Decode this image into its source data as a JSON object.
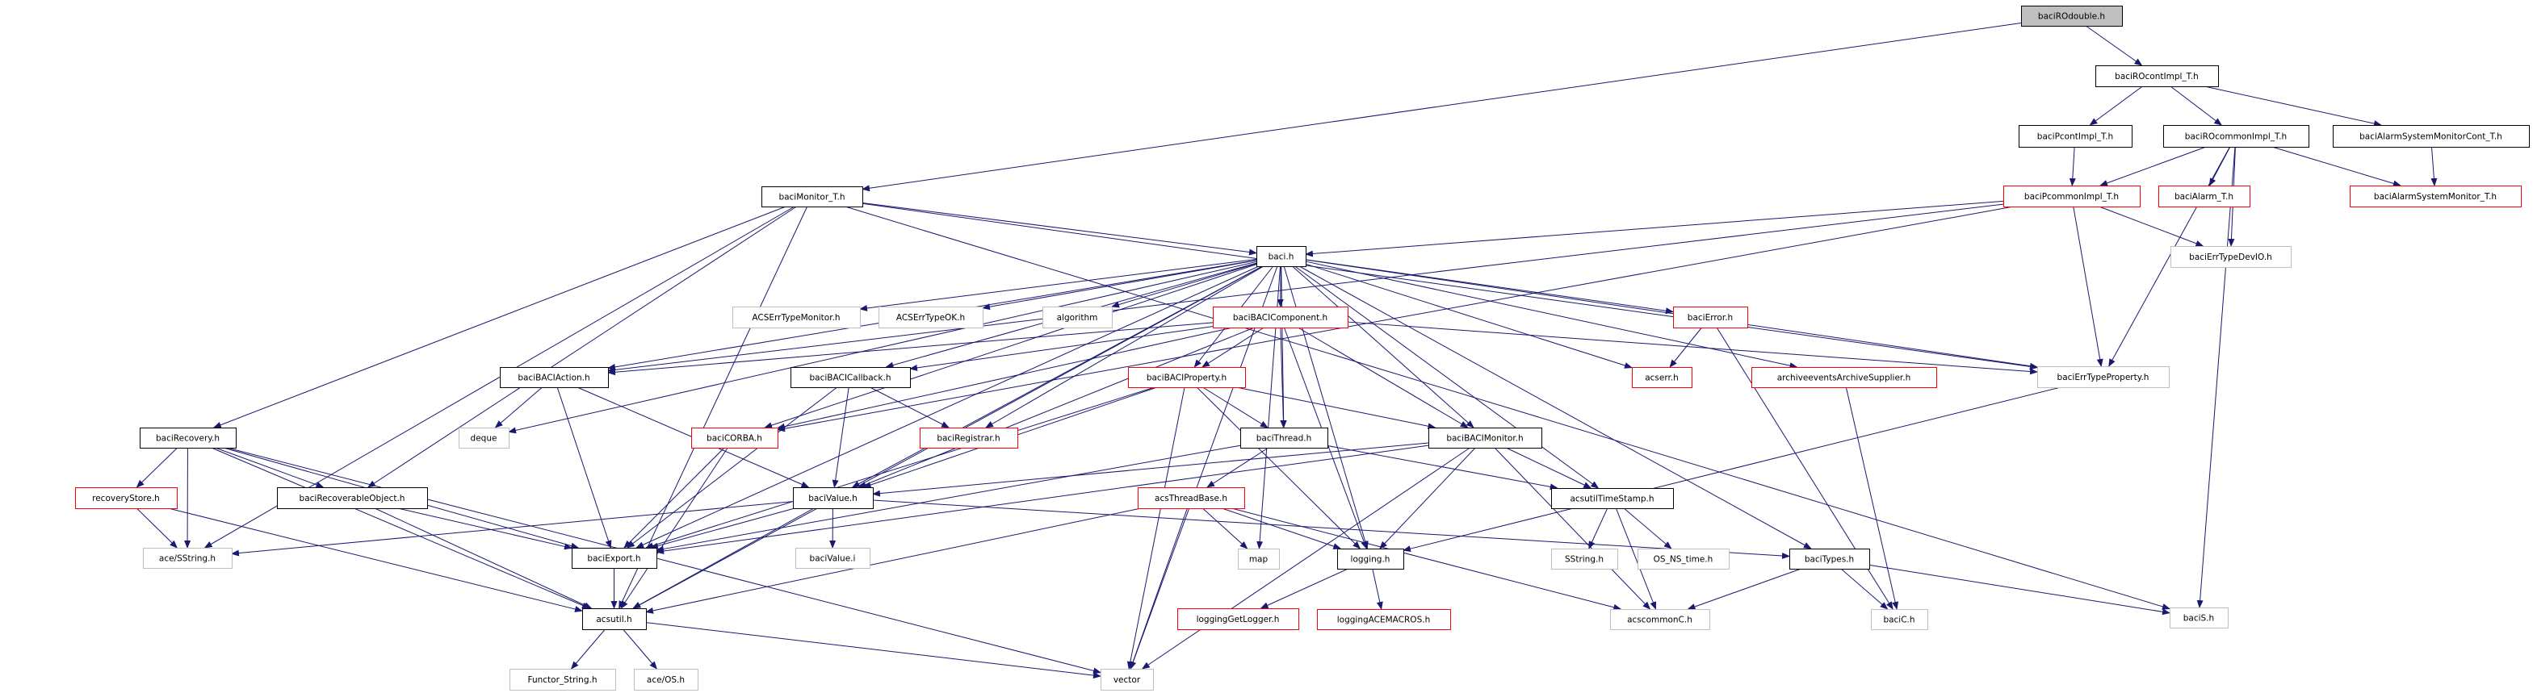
{
  "graph": {
    "colors": {
      "edge": "#191970",
      "root_fill": "#bfbfbf",
      "documented_border": "#000000",
      "undocumented_border": "#ff0000",
      "external_border": "#bfbfbf",
      "background": "#ffffff"
    },
    "nodes": [
      {
        "id": "baciROdouble",
        "label": "baciROdouble.h",
        "kind": "root"
      },
      {
        "id": "baciROcontImpl_T",
        "label": "baciROcontImpl_T.h",
        "kind": "documented"
      },
      {
        "id": "baciPcontImpl_T",
        "label": "baciPcontImpl_T.h",
        "kind": "documented"
      },
      {
        "id": "baciROcommonImpl_T",
        "label": "baciROcommonImpl_T.h",
        "kind": "documented"
      },
      {
        "id": "baciAlarmSystemMonitorCont_T",
        "label": "baciAlarmSystemMonitorCont_T.h",
        "kind": "documented"
      },
      {
        "id": "baciPcommonImpl_T",
        "label": "baciPcommonImpl_T.h",
        "kind": "undocumented"
      },
      {
        "id": "baciAlarm_T",
        "label": "baciAlarm_T.h",
        "kind": "undocumented"
      },
      {
        "id": "baciAlarmSystemMonitor_T",
        "label": "baciAlarmSystemMonitor_T.h",
        "kind": "undocumented"
      },
      {
        "id": "baciErrTypeDevIO",
        "label": "baciErrTypeDevIO.h",
        "kind": "external"
      },
      {
        "id": "baciErrTypeProperty",
        "label": "baciErrTypeProperty.h",
        "kind": "external"
      },
      {
        "id": "baciMonitor_T",
        "label": "baciMonitor_T.h",
        "kind": "documented"
      },
      {
        "id": "baci",
        "label": "baci.h",
        "kind": "documented"
      },
      {
        "id": "ACSErrTypeMonitor",
        "label": "ACSErrTypeMonitor.h",
        "kind": "external"
      },
      {
        "id": "ACSErrTypeOK",
        "label": "ACSErrTypeOK.h",
        "kind": "external"
      },
      {
        "id": "algorithm",
        "label": "algorithm",
        "kind": "external"
      },
      {
        "id": "baciBACIComponent",
        "label": "baciBACIComponent.h",
        "kind": "undocumented"
      },
      {
        "id": "baciError",
        "label": "baciError.h",
        "kind": "undocumented"
      },
      {
        "id": "baciBACIAction",
        "label": "baciBACIAction.h",
        "kind": "documented"
      },
      {
        "id": "baciBACICallback",
        "label": "baciBACICallback.h",
        "kind": "documented"
      },
      {
        "id": "baciBACIProperty",
        "label": "baciBACIProperty.h",
        "kind": "undocumented"
      },
      {
        "id": "acserr",
        "label": "acserr.h",
        "kind": "undocumented"
      },
      {
        "id": "archiveevents",
        "label": "archiveeventsArchiveSupplier.h",
        "kind": "undocumented"
      },
      {
        "id": "baciRecovery",
        "label": "baciRecovery.h",
        "kind": "documented"
      },
      {
        "id": "deque",
        "label": "deque",
        "kind": "external"
      },
      {
        "id": "baciCORBA",
        "label": "baciCORBA.h",
        "kind": "undocumented"
      },
      {
        "id": "baciRegistrar",
        "label": "baciRegistrar.h",
        "kind": "undocumented"
      },
      {
        "id": "baciThread",
        "label": "baciThread.h",
        "kind": "documented"
      },
      {
        "id": "baciBACIMonitor",
        "label": "baciBACIMonitor.h",
        "kind": "documented"
      },
      {
        "id": "recoveryStore",
        "label": "recoveryStore.h",
        "kind": "undocumented"
      },
      {
        "id": "baciRecoverableObject",
        "label": "baciRecoverableObject.h",
        "kind": "documented"
      },
      {
        "id": "baciValue",
        "label": "baciValue.h",
        "kind": "documented"
      },
      {
        "id": "acsThreadBase",
        "label": "acsThreadBase.h",
        "kind": "undocumented"
      },
      {
        "id": "acsutilTimeStamp",
        "label": "acsutilTimeStamp.h",
        "kind": "documented"
      },
      {
        "id": "aceSString",
        "label": "ace/SString.h",
        "kind": "external"
      },
      {
        "id": "baciExport",
        "label": "baciExport.h",
        "kind": "documented"
      },
      {
        "id": "baciValue_i",
        "label": "baciValue.i",
        "kind": "external"
      },
      {
        "id": "map",
        "label": "map",
        "kind": "external"
      },
      {
        "id": "logging",
        "label": "logging.h",
        "kind": "documented"
      },
      {
        "id": "SString",
        "label": "SString.h",
        "kind": "external"
      },
      {
        "id": "OS_NS_time",
        "label": "OS_NS_time.h",
        "kind": "external"
      },
      {
        "id": "baciTypes",
        "label": "baciTypes.h",
        "kind": "documented"
      },
      {
        "id": "acsutil",
        "label": "acsutil.h",
        "kind": "documented"
      },
      {
        "id": "loggingGetLogger",
        "label": "loggingGetLogger.h",
        "kind": "undocumented"
      },
      {
        "id": "loggingACEMACROS",
        "label": "loggingACEMACROS.h",
        "kind": "undocumented"
      },
      {
        "id": "acscommonC",
        "label": "acscommonC.h",
        "kind": "external"
      },
      {
        "id": "baciC",
        "label": "baciC.h",
        "kind": "external"
      },
      {
        "id": "baciS",
        "label": "baciS.h",
        "kind": "external"
      },
      {
        "id": "Functor_String",
        "label": "Functor_String.h",
        "kind": "external"
      },
      {
        "id": "aceOS",
        "label": "ace/OS.h",
        "kind": "external"
      },
      {
        "id": "vector",
        "label": "vector",
        "kind": "external"
      }
    ],
    "edges": [
      [
        "baciROdouble",
        "baciROcontImpl_T"
      ],
      [
        "baciROdouble",
        "baciMonitor_T"
      ],
      [
        "baciROcontImpl_T",
        "baciPcontImpl_T"
      ],
      [
        "baciROcontImpl_T",
        "baciROcommonImpl_T"
      ],
      [
        "baciROcontImpl_T",
        "baciAlarmSystemMonitorCont_T"
      ],
      [
        "baciPcontImpl_T",
        "baciPcommonImpl_T"
      ],
      [
        "baciROcommonImpl_T",
        "baciPcommonImpl_T"
      ],
      [
        "baciROcommonImpl_T",
        "baciAlarm_T"
      ],
      [
        "baciROcommonImpl_T",
        "baciErrTypeDevIO"
      ],
      [
        "baciROcommonImpl_T",
        "baciAlarmSystemMonitor_T"
      ],
      [
        "baciROcommonImpl_T",
        "baciErrTypeProperty"
      ],
      [
        "baciROcommonImpl_T",
        "baciS"
      ],
      [
        "baciAlarmSystemMonitorCont_T",
        "baciAlarmSystemMonitor_T"
      ],
      [
        "baciPcommonImpl_T",
        "baci"
      ],
      [
        "baciPcommonImpl_T",
        "baciErrTypeDevIO"
      ],
      [
        "baciPcommonImpl_T",
        "baciErrTypeProperty"
      ],
      [
        "baciPcommonImpl_T",
        "baciCORBA"
      ],
      [
        "baciPcommonImpl_T",
        "baciBACIAction"
      ],
      [
        "baciMonitor_T",
        "baci"
      ],
      [
        "baciMonitor_T",
        "baciRecovery"
      ],
      [
        "baciMonitor_T",
        "baciRecoverableObject"
      ],
      [
        "baciMonitor_T",
        "acsutil"
      ],
      [
        "baciMonitor_T",
        "aceSString"
      ],
      [
        "baciMonitor_T",
        "baciS"
      ],
      [
        "baciMonitor_T",
        "baciErrTypeProperty"
      ],
      [
        "baci",
        "baciBACIComponent"
      ],
      [
        "baci",
        "baciBACIAction"
      ],
      [
        "baci",
        "baciBACICallback"
      ],
      [
        "baci",
        "ACSErrTypeMonitor"
      ],
      [
        "baci",
        "ACSErrTypeOK"
      ],
      [
        "baci",
        "algorithm"
      ],
      [
        "baci",
        "baciBACIProperty"
      ],
      [
        "baci",
        "baciThread"
      ],
      [
        "baci",
        "baciBACIMonitor"
      ],
      [
        "baci",
        "baciError"
      ],
      [
        "baci",
        "acserr"
      ],
      [
        "baci",
        "archiveevents"
      ],
      [
        "baci",
        "baciErrTypeProperty"
      ],
      [
        "baci",
        "baciValue"
      ],
      [
        "baci",
        "baciExport"
      ],
      [
        "baci",
        "acsutil"
      ],
      [
        "baci",
        "deque"
      ],
      [
        "baci",
        "baciCORBA"
      ],
      [
        "baci",
        "baciRegistrar"
      ],
      [
        "baci",
        "logging"
      ],
      [
        "baci",
        "acsutilTimeStamp"
      ],
      [
        "baci",
        "baciTypes"
      ],
      [
        "baci",
        "map"
      ],
      [
        "baci",
        "vector"
      ],
      [
        "baciBACIComponent",
        "baciBACIAction"
      ],
      [
        "baciBACIComponent",
        "baciBACICallback"
      ],
      [
        "baciBACIComponent",
        "baciBACIProperty"
      ],
      [
        "baciBACIComponent",
        "baciThread"
      ],
      [
        "baciBACIComponent",
        "baciBACIMonitor"
      ],
      [
        "baciBACIComponent",
        "logging"
      ],
      [
        "baciBACIComponent",
        "baciErrTypeProperty"
      ],
      [
        "baciBACIComponent",
        "baciValue"
      ],
      [
        "baciBACIComponent",
        "baciCORBA"
      ],
      [
        "baciError",
        "acserr"
      ],
      [
        "baciError",
        "baciC"
      ],
      [
        "archiveevents",
        "baciC"
      ],
      [
        "baciBACIAction",
        "deque"
      ],
      [
        "baciBACIAction",
        "baciExport"
      ],
      [
        "baciBACIAction",
        "baciValue"
      ],
      [
        "baciBACICallback",
        "baciValue"
      ],
      [
        "baciBACICallback",
        "baciRegistrar"
      ],
      [
        "baciBACICallback",
        "baciExport"
      ],
      [
        "baciBACIProperty",
        "baciThread"
      ],
      [
        "baciBACIProperty",
        "baciBACIMonitor"
      ],
      [
        "baciBACIProperty",
        "baciValue"
      ],
      [
        "baciBACIProperty",
        "logging"
      ],
      [
        "baciBACIProperty",
        "vector"
      ],
      [
        "baciBACIProperty",
        "baciExport"
      ],
      [
        "baciThread",
        "acsThreadBase"
      ],
      [
        "baciThread",
        "acsutilTimeStamp"
      ],
      [
        "baciThread",
        "baciExport"
      ],
      [
        "baciBACIMonitor",
        "acsutilTimeStamp"
      ],
      [
        "baciBACIMonitor",
        "logging"
      ],
      [
        "baciBACIMonitor",
        "acscommonC"
      ],
      [
        "baciBACIMonitor",
        "vector"
      ],
      [
        "baciBACIMonitor",
        "baciValue"
      ],
      [
        "baciBACIMonitor",
        "baciExport"
      ],
      [
        "baciRecovery",
        "recoveryStore"
      ],
      [
        "baciRecovery",
        "aceSString"
      ],
      [
        "baciRecovery",
        "baciRecoverableObject"
      ],
      [
        "baciRecovery",
        "baciExport"
      ],
      [
        "baciRecovery",
        "acsutil"
      ],
      [
        "baciRecovery",
        "vector"
      ],
      [
        "recoveryStore",
        "aceSString"
      ],
      [
        "recoveryStore",
        "acsutil"
      ],
      [
        "baciRecoverableObject",
        "baciExport"
      ],
      [
        "baciRecoverableObject",
        "acsutil"
      ],
      [
        "baciCORBA",
        "baciExport"
      ],
      [
        "baciCORBA",
        "acsutil"
      ],
      [
        "baciValue",
        "baciValue_i"
      ],
      [
        "baciValue",
        "baciExport"
      ],
      [
        "baciValue",
        "acsutil"
      ],
      [
        "baciValue",
        "aceSString"
      ],
      [
        "baciValue",
        "baciTypes"
      ],
      [
        "acsThreadBase",
        "map"
      ],
      [
        "acsThreadBase",
        "logging"
      ],
      [
        "acsThreadBase",
        "vector"
      ],
      [
        "acsThreadBase",
        "acscommonC"
      ],
      [
        "acsThreadBase",
        "acsutil"
      ],
      [
        "acsutilTimeStamp",
        "SString"
      ],
      [
        "acsutilTimeStamp",
        "OS_NS_time"
      ],
      [
        "acsutilTimeStamp",
        "acscommonC"
      ],
      [
        "logging",
        "loggingGetLogger"
      ],
      [
        "logging",
        "loggingACEMACROS"
      ],
      [
        "baciTypes",
        "baciC"
      ],
      [
        "baciTypes",
        "acscommonC"
      ],
      [
        "baciTypes",
        "baciS"
      ],
      [
        "baciErrTypeProperty",
        "logging"
      ],
      [
        "baciExport",
        "acsutil"
      ],
      [
        "acsutil",
        "Functor_String"
      ],
      [
        "acsutil",
        "aceOS"
      ],
      [
        "acsutil",
        "vector"
      ]
    ]
  }
}
